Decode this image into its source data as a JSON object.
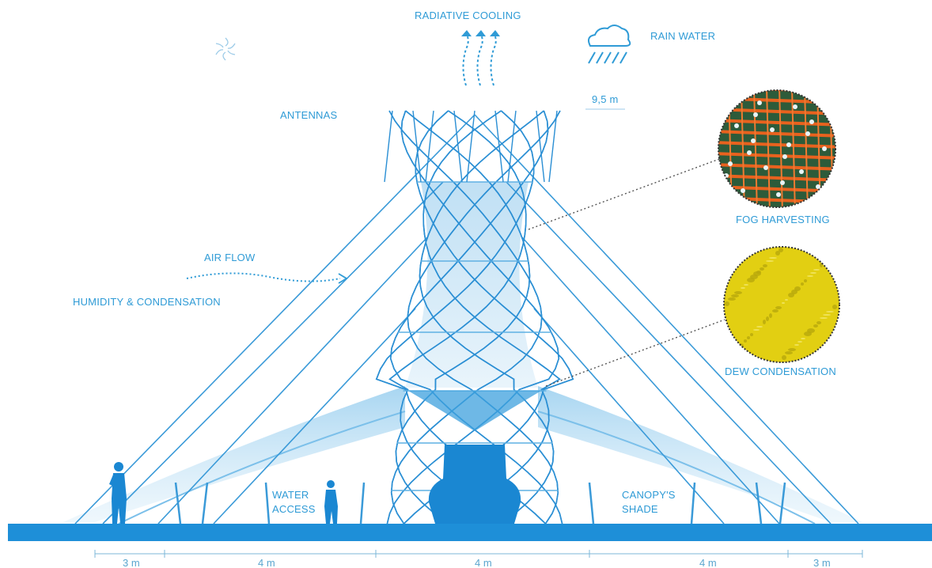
{
  "labels": {
    "radiative_cooling": "RADIATIVE COOLING",
    "rain_water": "RAIN WATER",
    "height": "9,5 m",
    "antennas": "ANTENNAS",
    "fog_harvesting": "FOG HARVESTING",
    "air_flow": "AIR FLOW",
    "humidity": "HUMIDITY & CONDENSATION",
    "dew_condensation": "DEW CONDENSATION",
    "water_access_1": "WATER",
    "water_access_2": "ACCESS",
    "canopy_1": "CANOPY'S",
    "canopy_2": "SHADE"
  },
  "dimensions": [
    "3 m",
    "4 m",
    "4 m",
    "4 m",
    "3 m"
  ],
  "icons": [
    "sun-icon",
    "rain-cloud-icon",
    "radiative-arrows-icon",
    "air-flow-arrow-icon",
    "person-icon"
  ],
  "colors": {
    "primary": "#1a8fd6",
    "ground": "#1e8fd8",
    "light": "#8fc9ee",
    "fog_net": "#e8621e",
    "dew": "#e5d212"
  }
}
